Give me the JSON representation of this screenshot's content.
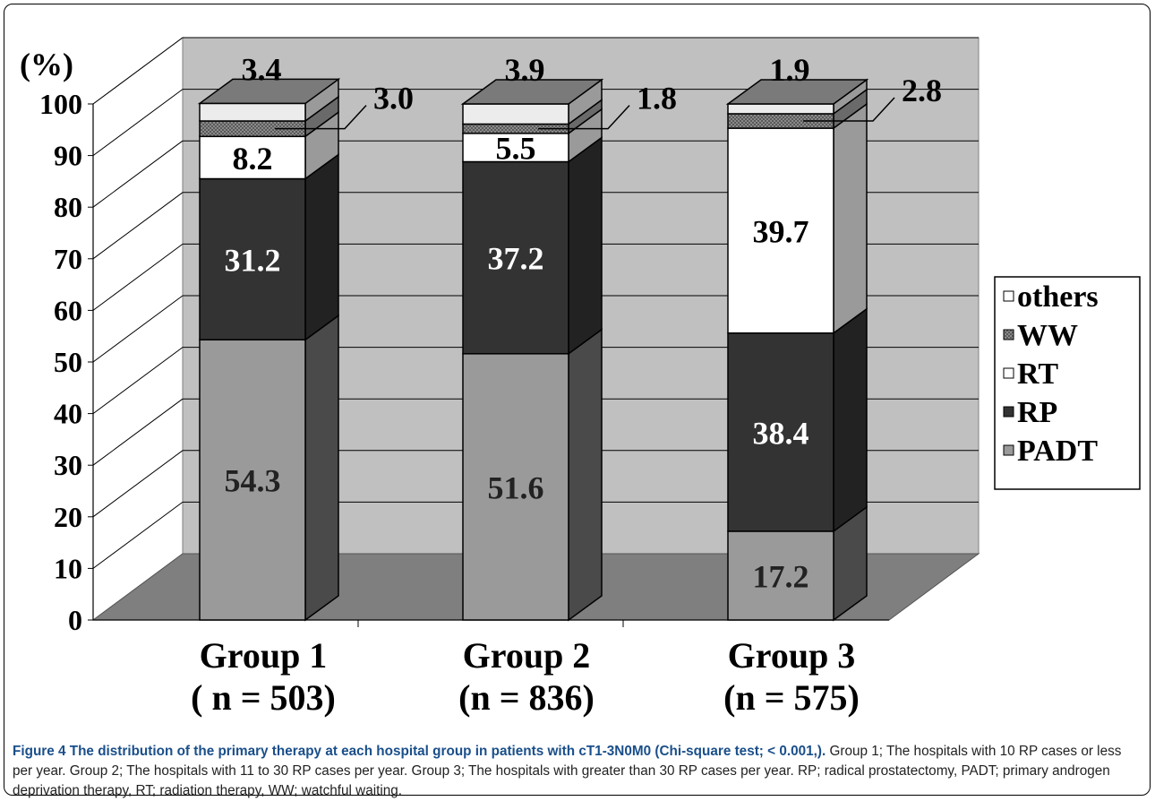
{
  "chart_data": {
    "type": "bar",
    "stacked": true,
    "three_d": true,
    "categories": [
      "Group 1",
      "Group 2",
      "Group 3"
    ],
    "category_n": [
      "( n = 503)",
      "(n = 836)",
      "(n = 575)"
    ],
    "series": [
      {
        "name": "PADT",
        "values": [
          54.3,
          51.6,
          17.2
        ],
        "color": "#9a9a9a",
        "labels": [
          "54.3",
          "51.6",
          "17.2"
        ]
      },
      {
        "name": "RP",
        "values": [
          31.2,
          37.2,
          38.4
        ],
        "color": "#333333",
        "labels": [
          "31.2",
          "37.2",
          "38.4"
        ]
      },
      {
        "name": "RT",
        "values": [
          8.2,
          5.5,
          39.7
        ],
        "color": "#ffffff",
        "labels": [
          "8.2",
          "5.5",
          "39.7"
        ]
      },
      {
        "name": "WW",
        "values": [
          3.0,
          1.8,
          2.8
        ],
        "color": "#7a7a7a",
        "labels": [
          "3.0",
          "1.8",
          "2.8"
        ]
      },
      {
        "name": "others",
        "values": [
          3.4,
          3.9,
          1.9
        ],
        "color": "#ececec",
        "labels": [
          "3.4",
          "3.9",
          "1.9"
        ]
      }
    ],
    "ylabel": "(%)",
    "yticks": [
      "0",
      "10",
      "20",
      "30",
      "40",
      "50",
      "60",
      "70",
      "80",
      "90",
      "100"
    ],
    "ylim": [
      0,
      100
    ],
    "grid": true,
    "legend": {
      "position": "right",
      "order": [
        "others",
        "WW",
        "RT",
        "RP",
        "PADT"
      ]
    }
  },
  "caption": {
    "title": "Figure 4 The distribution of the primary therapy at each hospital group in patients with cT1-3N0M0 (Chi-square test; < 0.001,).",
    "body": " Group 1; The hospitals with 10 RP cases or less per year. Group 2; The hospitals with 11 to 30 RP cases per year. Group 3; The hospitals with greater than 30 RP cases per year. RP; radical prostatectomy, PADT; primary androgen deprivation therapy, RT; radiation therapy, WW; watchful waiting."
  }
}
